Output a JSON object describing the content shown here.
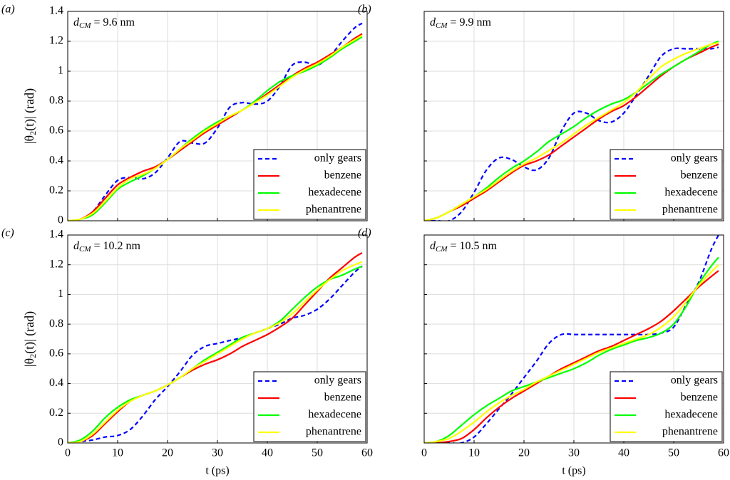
{
  "chart_data": [
    {
      "type": "line",
      "panel_label": "(a)",
      "annotation": {
        "symbol": "d",
        "sub": "CM",
        "text": " = 9.6 nm"
      },
      "ylabel": {
        "pre": "|θ",
        "sub": "2",
        "post": "(t)| (rad)"
      },
      "xlim": [
        0,
        60
      ],
      "ylim": [
        0,
        1.4
      ],
      "xticks": [
        0,
        10,
        20,
        30,
        40,
        50,
        60
      ],
      "yticks": [
        0,
        0.2,
        0.4,
        0.6,
        0.8,
        1,
        1.2,
        1.4
      ],
      "xtick_labels": false,
      "ytick_labels": true,
      "grid": true,
      "legend": "lower right",
      "x": [
        0,
        2.5,
        5,
        7.5,
        10,
        12.5,
        15,
        17.5,
        20,
        22.5,
        25,
        27.5,
        30,
        32.5,
        35,
        37.5,
        40,
        42.5,
        45,
        47.5,
        50,
        52.5,
        55,
        57.5,
        59
      ],
      "series": [
        {
          "name": "only gears",
          "color": "#0000ff",
          "dashed": true,
          "values": [
            0,
            0.01,
            0.06,
            0.17,
            0.27,
            0.29,
            0.28,
            0.32,
            0.42,
            0.53,
            0.52,
            0.52,
            0.62,
            0.76,
            0.79,
            0.78,
            0.8,
            0.9,
            1.04,
            1.06,
            1.04,
            1.1,
            1.2,
            1.29,
            1.32
          ]
        },
        {
          "name": "benzene",
          "color": "#ff0000",
          "values": [
            0,
            0.01,
            0.06,
            0.15,
            0.24,
            0.29,
            0.33,
            0.36,
            0.41,
            0.47,
            0.53,
            0.59,
            0.64,
            0.69,
            0.74,
            0.79,
            0.85,
            0.91,
            0.97,
            1.02,
            1.06,
            1.11,
            1.16,
            1.22,
            1.25
          ]
        },
        {
          "name": "hexadecene",
          "color": "#00ff00",
          "values": [
            0,
            0.01,
            0.04,
            0.12,
            0.21,
            0.26,
            0.3,
            0.35,
            0.41,
            0.48,
            0.55,
            0.61,
            0.66,
            0.7,
            0.74,
            0.8,
            0.87,
            0.93,
            0.97,
            1.0,
            1.04,
            1.09,
            1.15,
            1.2,
            1.23
          ]
        },
        {
          "name": "phenantrene",
          "color": "#ffff00",
          "values": [
            0,
            0.01,
            0.05,
            0.13,
            0.22,
            0.28,
            0.31,
            0.35,
            0.41,
            0.48,
            0.54,
            0.6,
            0.65,
            0.7,
            0.74,
            0.79,
            0.84,
            0.9,
            0.96,
            1.01,
            1.05,
            1.1,
            1.16,
            1.21,
            1.24
          ]
        }
      ]
    },
    {
      "type": "line",
      "panel_label": "(b)",
      "annotation": {
        "symbol": "d",
        "sub": "CM",
        "text": " = 9.9 nm"
      },
      "xlim": [
        0,
        60
      ],
      "ylim": [
        0,
        1.4
      ],
      "xticks": [
        0,
        10,
        20,
        30,
        40,
        50,
        60
      ],
      "yticks": [
        0,
        0.2,
        0.4,
        0.6,
        0.8,
        1,
        1.2,
        1.4
      ],
      "xtick_labels": false,
      "ytick_labels": false,
      "grid": true,
      "legend": "lower right",
      "x": [
        0,
        2.5,
        5,
        7.5,
        10,
        12.5,
        15,
        17.5,
        20,
        22.5,
        25,
        27.5,
        30,
        32.5,
        35,
        37.5,
        40,
        42.5,
        45,
        47.5,
        50,
        52.5,
        55,
        57.5,
        59
      ],
      "series": [
        {
          "name": "only gears",
          "color": "#0000ff",
          "dashed": true,
          "values": [
            0,
            0,
            0,
            0.06,
            0.19,
            0.34,
            0.42,
            0.41,
            0.36,
            0.34,
            0.42,
            0.6,
            0.72,
            0.72,
            0.67,
            0.66,
            0.72,
            0.84,
            0.97,
            1.1,
            1.15,
            1.15,
            1.15,
            1.15,
            1.16
          ]
        },
        {
          "name": "benzene",
          "color": "#ff0000",
          "values": [
            0,
            0.02,
            0.06,
            0.1,
            0.15,
            0.2,
            0.26,
            0.32,
            0.37,
            0.4,
            0.44,
            0.5,
            0.56,
            0.62,
            0.68,
            0.73,
            0.77,
            0.83,
            0.9,
            0.97,
            1.03,
            1.08,
            1.12,
            1.16,
            1.18
          ]
        },
        {
          "name": "hexadecene",
          "color": "#00ff00",
          "values": [
            0,
            0.02,
            0.06,
            0.11,
            0.16,
            0.22,
            0.29,
            0.35,
            0.4,
            0.46,
            0.53,
            0.58,
            0.63,
            0.69,
            0.74,
            0.78,
            0.81,
            0.86,
            0.92,
            0.98,
            1.03,
            1.08,
            1.13,
            1.18,
            1.2
          ]
        },
        {
          "name": "phenantrene",
          "color": "#ffff00",
          "values": [
            0,
            0.02,
            0.06,
            0.11,
            0.16,
            0.21,
            0.27,
            0.33,
            0.38,
            0.42,
            0.47,
            0.52,
            0.58,
            0.64,
            0.69,
            0.74,
            0.79,
            0.86,
            0.95,
            1.03,
            1.08,
            1.12,
            1.15,
            1.18,
            1.19
          ]
        }
      ]
    },
    {
      "type": "line",
      "panel_label": "(c)",
      "annotation": {
        "symbol": "d",
        "sub": "CM",
        "text": " = 10.2 nm"
      },
      "xlabel": "t (ps)",
      "ylabel": {
        "pre": "|θ",
        "sub": "2",
        "post": "(t)| (rad)"
      },
      "xlim": [
        0,
        60
      ],
      "ylim": [
        0,
        1.4
      ],
      "xticks": [
        0,
        10,
        20,
        30,
        40,
        50,
        60
      ],
      "yticks": [
        0,
        0.2,
        0.4,
        0.6,
        0.8,
        1,
        1.2,
        1.4
      ],
      "xtick_labels": true,
      "ytick_labels": true,
      "grid": true,
      "legend": "lower right",
      "x": [
        0,
        2.5,
        5,
        7.5,
        10,
        12.5,
        15,
        17.5,
        20,
        22.5,
        25,
        27.5,
        30,
        32.5,
        35,
        37.5,
        40,
        42.5,
        45,
        47.5,
        50,
        52.5,
        55,
        57.5,
        59
      ],
      "series": [
        {
          "name": "only gears",
          "color": "#0000ff",
          "dashed": true,
          "values": [
            0,
            0.01,
            0.02,
            0.04,
            0.05,
            0.09,
            0.18,
            0.29,
            0.38,
            0.48,
            0.59,
            0.65,
            0.67,
            0.69,
            0.71,
            0.74,
            0.77,
            0.8,
            0.84,
            0.86,
            0.9,
            0.97,
            1.06,
            1.15,
            1.19
          ]
        },
        {
          "name": "benzene",
          "color": "#ff0000",
          "values": [
            0,
            0.01,
            0.05,
            0.13,
            0.21,
            0.28,
            0.32,
            0.35,
            0.39,
            0.44,
            0.49,
            0.53,
            0.56,
            0.6,
            0.65,
            0.69,
            0.73,
            0.78,
            0.84,
            0.93,
            1.02,
            1.11,
            1.18,
            1.25,
            1.28
          ]
        },
        {
          "name": "hexadecene",
          "color": "#00ff00",
          "values": [
            0,
            0.02,
            0.08,
            0.17,
            0.24,
            0.29,
            0.32,
            0.35,
            0.39,
            0.44,
            0.5,
            0.56,
            0.61,
            0.66,
            0.71,
            0.74,
            0.77,
            0.82,
            0.9,
            0.98,
            1.05,
            1.1,
            1.13,
            1.17,
            1.19
          ]
        },
        {
          "name": "phenantrene",
          "color": "#ffff00",
          "values": [
            0,
            0.01,
            0.06,
            0.14,
            0.22,
            0.28,
            0.32,
            0.35,
            0.39,
            0.44,
            0.5,
            0.55,
            0.6,
            0.65,
            0.7,
            0.74,
            0.77,
            0.81,
            0.87,
            0.95,
            1.03,
            1.1,
            1.16,
            1.2,
            1.22
          ]
        }
      ]
    },
    {
      "type": "line",
      "panel_label": "(d)",
      "annotation": {
        "symbol": "d",
        "sub": "CM",
        "text": " = 10.5 nm"
      },
      "xlabel": "t (ps)",
      "xlim": [
        0,
        60
      ],
      "ylim": [
        0,
        1.4
      ],
      "xticks": [
        0,
        10,
        20,
        30,
        40,
        50,
        60
      ],
      "yticks": [
        0,
        0.2,
        0.4,
        0.6,
        0.8,
        1,
        1.2,
        1.4
      ],
      "xtick_labels": true,
      "ytick_labels": false,
      "grid": true,
      "legend": "lower right",
      "x": [
        0,
        2.5,
        5,
        7.5,
        10,
        12.5,
        15,
        17.5,
        20,
        22.5,
        25,
        27.5,
        30,
        32.5,
        35,
        37.5,
        40,
        42.5,
        45,
        47.5,
        50,
        52.5,
        55,
        57.5,
        59
      ],
      "series": [
        {
          "name": "only gears",
          "color": "#0000ff",
          "dashed": true,
          "values": [
            0,
            0,
            0,
            0,
            0.04,
            0.13,
            0.23,
            0.33,
            0.44,
            0.55,
            0.67,
            0.73,
            0.73,
            0.73,
            0.73,
            0.73,
            0.73,
            0.73,
            0.73,
            0.74,
            0.78,
            0.93,
            1.08,
            1.3,
            1.4
          ]
        },
        {
          "name": "benzene",
          "color": "#ff0000",
          "values": [
            0,
            0,
            0.01,
            0.03,
            0.09,
            0.17,
            0.24,
            0.3,
            0.35,
            0.4,
            0.45,
            0.5,
            0.54,
            0.58,
            0.62,
            0.65,
            0.69,
            0.73,
            0.77,
            0.82,
            0.89,
            0.97,
            1.05,
            1.12,
            1.16
          ]
        },
        {
          "name": "hexadecene",
          "color": "#00ff00",
          "values": [
            0,
            0.01,
            0.05,
            0.12,
            0.19,
            0.25,
            0.3,
            0.35,
            0.38,
            0.41,
            0.44,
            0.47,
            0.5,
            0.54,
            0.59,
            0.63,
            0.66,
            0.69,
            0.71,
            0.74,
            0.8,
            0.92,
            1.07,
            1.19,
            1.25
          ]
        },
        {
          "name": "phenantrene",
          "color": "#ffff00",
          "values": [
            0,
            0.01,
            0.03,
            0.08,
            0.14,
            0.21,
            0.27,
            0.32,
            0.36,
            0.41,
            0.45,
            0.49,
            0.53,
            0.57,
            0.61,
            0.64,
            0.67,
            0.7,
            0.73,
            0.78,
            0.85,
            0.95,
            1.06,
            1.15,
            1.2
          ]
        }
      ]
    }
  ]
}
